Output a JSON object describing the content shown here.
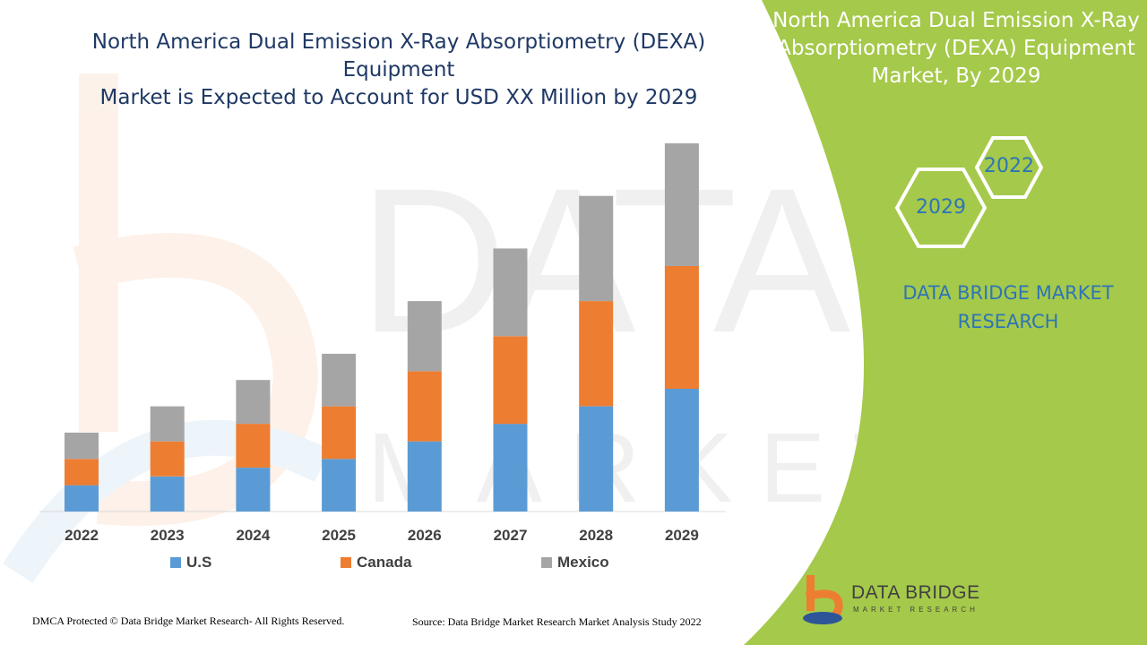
{
  "main_title": {
    "line1": "North America Dual Emission X-Ray Absorptiometry (DEXA) Equipment",
    "line2": "Market is Expected to Account for USD XX Million by 2029"
  },
  "side_panel": {
    "title_line1": "North America Dual Emission X-Ray",
    "title_line2": "Absorptiometry (DEXA) Equipment",
    "title_line3": "Market, By 2029",
    "hex_year_top": "2022",
    "hex_year_bottom": "2029",
    "brand_line1": "DATA BRIDGE MARKET",
    "brand_line2": "RESEARCH",
    "panel_color": "#a5c94a"
  },
  "chart_data": {
    "type": "bar",
    "stacked": true,
    "categories": [
      "2022",
      "2023",
      "2024",
      "2025",
      "2026",
      "2027",
      "2028",
      "2029"
    ],
    "series": [
      {
        "name": "U.S",
        "color": "#5b9bd5",
        "values": [
          1.5,
          2.0,
          2.5,
          3.0,
          4.0,
          5.0,
          6.0,
          7.0
        ]
      },
      {
        "name": "Canada",
        "color": "#ed7d31",
        "values": [
          1.5,
          2.0,
          2.5,
          3.0,
          4.0,
          5.0,
          6.0,
          7.0
        ]
      },
      {
        "name": "Mexico",
        "color": "#a5a5a5",
        "values": [
          1.5,
          2.0,
          2.5,
          3.0,
          4.0,
          5.0,
          6.0,
          7.0
        ]
      }
    ],
    "ylim": [
      0,
      21
    ],
    "legend_position": "bottom",
    "grid": false
  },
  "footer": {
    "left": "DMCA Protected © Data Bridge Market Research- All Rights Reserved.",
    "right": "Source: Data Bridge Market Research Market Analysis Study 2022"
  },
  "logo": {
    "name": "DATA BRIDGE",
    "sub": "MARKET RESEARCH"
  }
}
